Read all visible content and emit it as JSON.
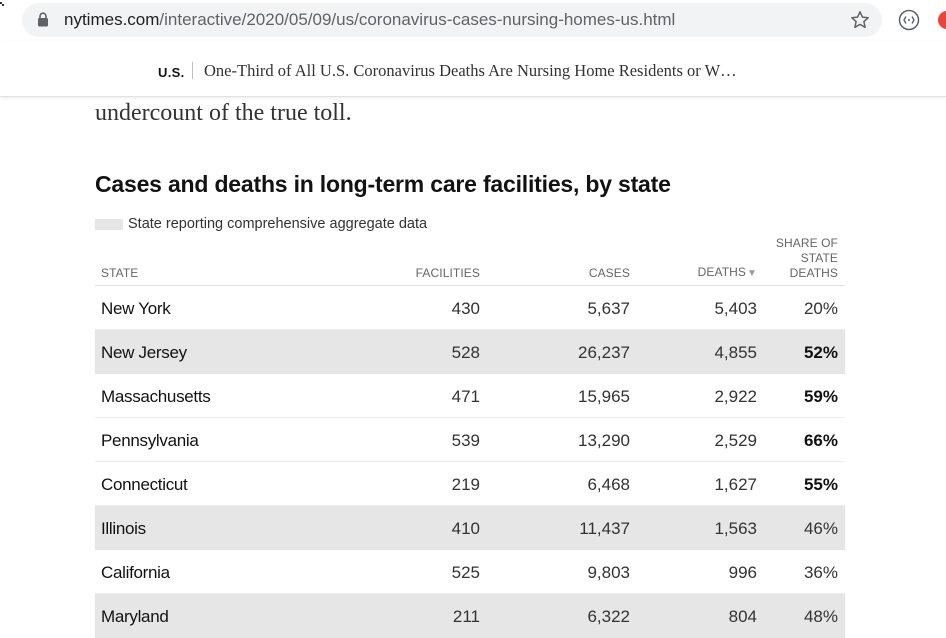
{
  "browser": {
    "url_domain": "nytimes.com",
    "url_path": "/interactive/2020/05/09/us/coronavirus-cases-nursing-homes-us.html"
  },
  "nyt_header": {
    "section": "U.S.",
    "headline": "One-Third of All U.S. Coronavirus Deaths Are Nursing Home Residents or W…"
  },
  "article": {
    "body_fragment": "undercount of the true toll."
  },
  "table": {
    "title": "Cases and deaths in long-term care facilities, by state",
    "legend_label": "State reporting comprehensive aggregate data",
    "legend_color": "#e6e6e6",
    "headers": {
      "state": "STATE",
      "facilities": "FACILITIES",
      "cases": "CASES",
      "deaths": "DEATHS",
      "share_line1": "SHARE OF",
      "share_line2": "STATE",
      "share_line3": "DEATHS"
    },
    "sort_indicator": "down-triangle-icon",
    "rows": [
      {
        "state": "New York",
        "facilities": "430",
        "cases": "5,637",
        "deaths": "5,403",
        "share": "20%",
        "comprehensive": false,
        "share_bold": false
      },
      {
        "state": "New Jersey",
        "facilities": "528",
        "cases": "26,237",
        "deaths": "4,855",
        "share": "52%",
        "comprehensive": true,
        "share_bold": true
      },
      {
        "state": "Massachusetts",
        "facilities": "471",
        "cases": "15,965",
        "deaths": "2,922",
        "share": "59%",
        "comprehensive": false,
        "share_bold": true
      },
      {
        "state": "Pennsylvania",
        "facilities": "539",
        "cases": "13,290",
        "deaths": "2,529",
        "share": "66%",
        "comprehensive": false,
        "share_bold": true
      },
      {
        "state": "Connecticut",
        "facilities": "219",
        "cases": "6,468",
        "deaths": "1,627",
        "share": "55%",
        "comprehensive": false,
        "share_bold": true
      },
      {
        "state": "Illinois",
        "facilities": "410",
        "cases": "11,437",
        "deaths": "1,563",
        "share": "46%",
        "comprehensive": true,
        "share_bold": false
      },
      {
        "state": "California",
        "facilities": "525",
        "cases": "9,803",
        "deaths": "996",
        "share": "36%",
        "comprehensive": false,
        "share_bold": false
      },
      {
        "state": "Maryland",
        "facilities": "211",
        "cases": "6,322",
        "deaths": "804",
        "share": "48%",
        "comprehensive": true,
        "share_bold": false
      }
    ]
  }
}
